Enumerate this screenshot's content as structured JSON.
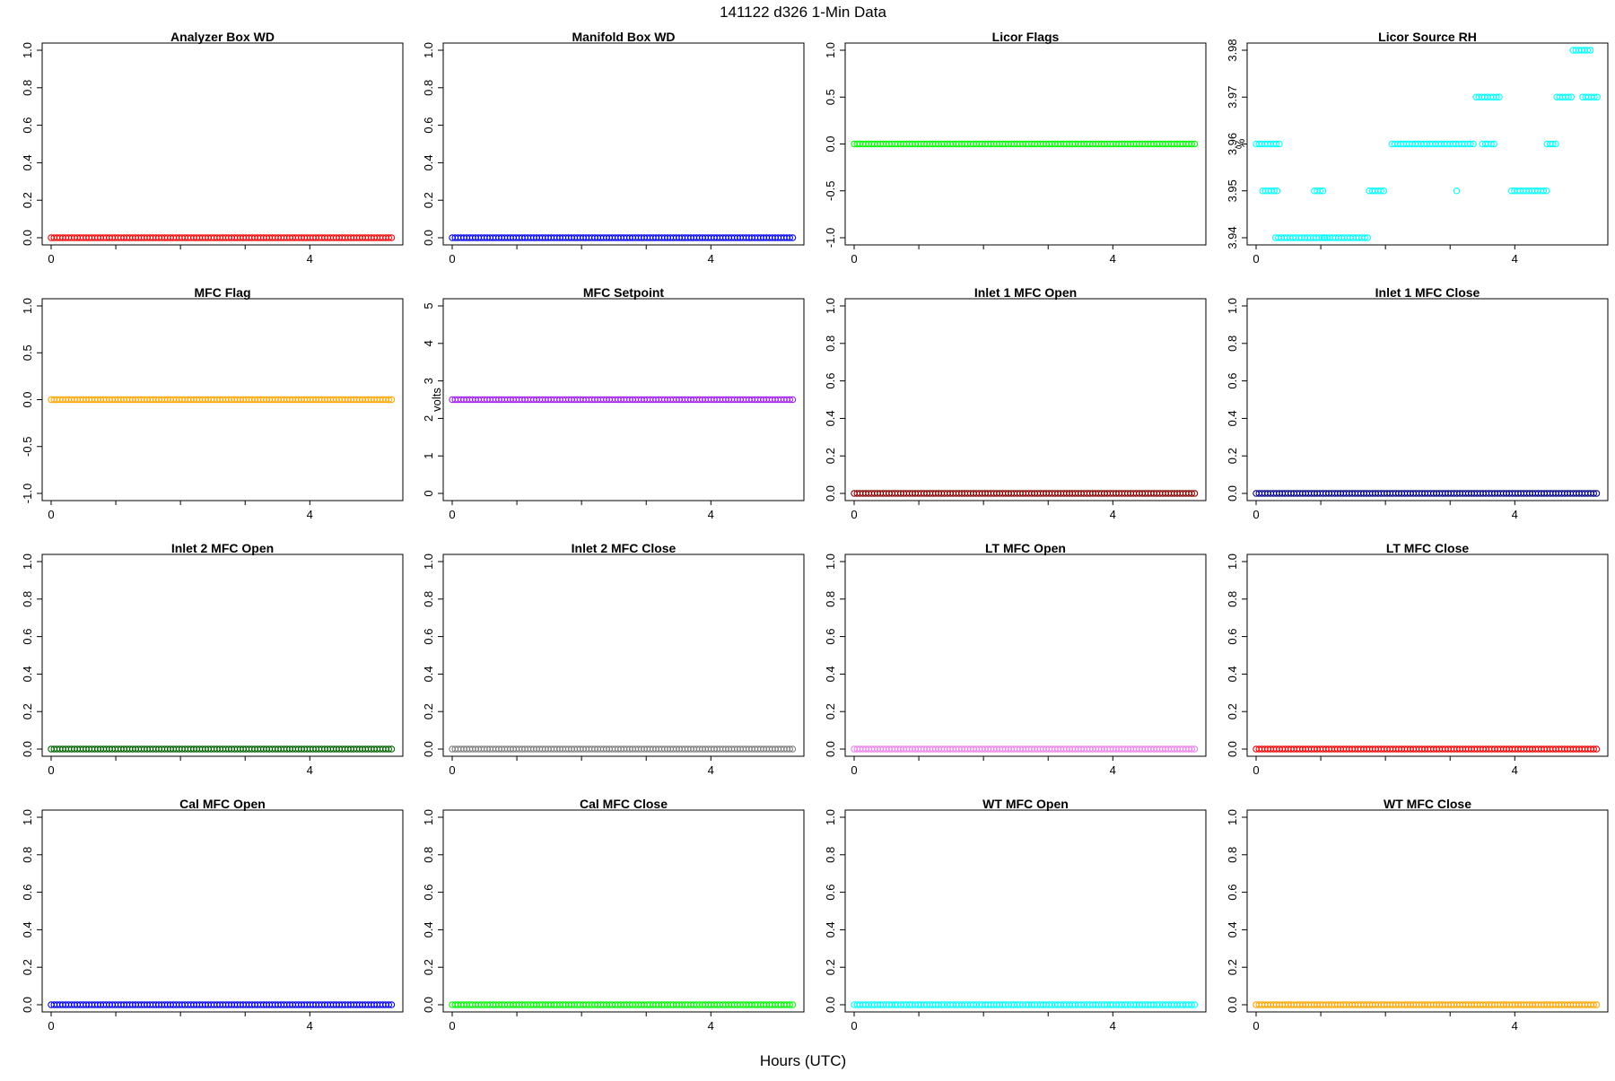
{
  "header": {
    "title": "141122   d326   1-Min Data",
    "xlabel": "Hours (UTC)"
  },
  "chart_data": [
    {
      "type": "scatter",
      "title": "Analyzer Box WD",
      "ylabel": "",
      "color": "#ff0000",
      "xlim": [
        0,
        5.3
      ],
      "ylim": [
        0,
        1
      ],
      "yticks": [
        "0.0",
        "0.2",
        "0.4",
        "0.6",
        "0.8",
        "1.0"
      ],
      "xticks": [
        "0",
        "4"
      ],
      "x_range": [
        0,
        5.3
      ],
      "y_constant": 0
    },
    {
      "type": "scatter",
      "title": "Manifold Box WD",
      "ylabel": "",
      "color": "#0000ff",
      "xlim": [
        0,
        5.3
      ],
      "ylim": [
        0,
        1
      ],
      "yticks": [
        "0.0",
        "0.2",
        "0.4",
        "0.6",
        "0.8",
        "1.0"
      ],
      "xticks": [
        "0",
        "4"
      ],
      "x_range": [
        0,
        5.3
      ],
      "y_constant": 0
    },
    {
      "type": "scatter",
      "title": "Licor Flags",
      "ylabel": "",
      "color": "#00ff00",
      "xlim": [
        0,
        5.3
      ],
      "ylim": [
        -1,
        1
      ],
      "yticks": [
        "-1.0",
        "-0.5",
        "0.0",
        "0.5",
        "1.0"
      ],
      "xticks": [
        "0",
        "4"
      ],
      "x_range": [
        0,
        5.3
      ],
      "y_constant": 0
    },
    {
      "type": "scatter",
      "title": "Licor Source RH",
      "ylabel": "%",
      "color": "#00ffff",
      "xlim": [
        0,
        5.3
      ],
      "ylim": [
        3.94,
        3.98
      ],
      "yticks": [
        "3.94",
        "3.95",
        "3.96",
        "3.97",
        "3.98"
      ],
      "xticks": [
        "0",
        "4"
      ],
      "segments": [
        {
          "x": [
            0.0,
            0.4
          ],
          "y": 3.96
        },
        {
          "x": [
            0.1,
            0.35
          ],
          "y": 3.95
        },
        {
          "x": [
            0.3,
            1.1
          ],
          "y": 3.94
        },
        {
          "x": [
            0.9,
            1.05
          ],
          "y": 3.95
        },
        {
          "x": [
            1.05,
            1.75
          ],
          "y": 3.94
        },
        {
          "x": [
            1.75,
            2.0
          ],
          "y": 3.95
        },
        {
          "x": [
            2.1,
            3.4
          ],
          "y": 3.96
        },
        {
          "x": [
            3.1,
            3.1
          ],
          "y": 3.95
        },
        {
          "x": [
            3.4,
            3.8
          ],
          "y": 3.97
        },
        {
          "x": [
            3.5,
            3.7
          ],
          "y": 3.96
        },
        {
          "x": [
            3.95,
            4.5
          ],
          "y": 3.95
        },
        {
          "x": [
            4.5,
            4.65
          ],
          "y": 3.96
        },
        {
          "x": [
            4.65,
            4.9
          ],
          "y": 3.97
        },
        {
          "x": [
            4.9,
            5.2
          ],
          "y": 3.98
        },
        {
          "x": [
            5.05,
            5.3
          ],
          "y": 3.97
        }
      ]
    },
    {
      "type": "scatter",
      "title": "MFC Flag",
      "ylabel": "",
      "color": "#ffa500",
      "xlim": [
        0,
        5.3
      ],
      "ylim": [
        -1,
        1
      ],
      "yticks": [
        "-1.0",
        "-0.5",
        "0.0",
        "0.5",
        "1.0"
      ],
      "xticks": [
        "0",
        "4"
      ],
      "x_range": [
        0,
        5.3
      ],
      "y_constant": 0
    },
    {
      "type": "scatter",
      "title": "MFC Setpoint",
      "ylabel": "volts",
      "color": "#a020f0",
      "xlim": [
        0,
        5.3
      ],
      "ylim": [
        0,
        5
      ],
      "yticks": [
        "0",
        "1",
        "2",
        "3",
        "4",
        "5"
      ],
      "xticks": [
        "0",
        "4"
      ],
      "x_range": [
        0,
        5.3
      ],
      "y_constant": 2.5
    },
    {
      "type": "scatter",
      "title": "Inlet 1 MFC Open",
      "ylabel": "",
      "color": "#8b0000",
      "xlim": [
        0,
        5.3
      ],
      "ylim": [
        0,
        1
      ],
      "yticks": [
        "0.0",
        "0.2",
        "0.4",
        "0.6",
        "0.8",
        "1.0"
      ],
      "xticks": [
        "0",
        "4"
      ],
      "x_range": [
        0,
        5.3
      ],
      "y_constant": 0
    },
    {
      "type": "scatter",
      "title": "Inlet 1 MFC Close",
      "ylabel": "",
      "color": "#00008b",
      "xlim": [
        0,
        5.3
      ],
      "ylim": [
        0,
        1
      ],
      "yticks": [
        "0.0",
        "0.2",
        "0.4",
        "0.6",
        "0.8",
        "1.0"
      ],
      "xticks": [
        "0",
        "4"
      ],
      "x_range": [
        0,
        5.3
      ],
      "y_constant": 0
    },
    {
      "type": "scatter",
      "title": "Inlet 2 MFC Open",
      "ylabel": "",
      "color": "#006400",
      "xlim": [
        0,
        5.3
      ],
      "ylim": [
        0,
        1
      ],
      "yticks": [
        "0.0",
        "0.2",
        "0.4",
        "0.6",
        "0.8",
        "1.0"
      ],
      "xticks": [
        "0",
        "4"
      ],
      "x_range": [
        0,
        5.3
      ],
      "y_constant": 0
    },
    {
      "type": "scatter",
      "title": "Inlet 2 MFC Close",
      "ylabel": "",
      "color": "#808080",
      "xlim": [
        0,
        5.3
      ],
      "ylim": [
        0,
        1
      ],
      "yticks": [
        "0.0",
        "0.2",
        "0.4",
        "0.6",
        "0.8",
        "1.0"
      ],
      "xticks": [
        "0",
        "4"
      ],
      "x_range": [
        0,
        5.3
      ],
      "y_constant": 0
    },
    {
      "type": "scatter",
      "title": "LT MFC Open",
      "ylabel": "",
      "color": "#ee82ee",
      "xlim": [
        0,
        5.3
      ],
      "ylim": [
        0,
        1
      ],
      "yticks": [
        "0.0",
        "0.2",
        "0.4",
        "0.6",
        "0.8",
        "1.0"
      ],
      "xticks": [
        "0",
        "4"
      ],
      "x_range": [
        0,
        5.3
      ],
      "y_constant": 0
    },
    {
      "type": "scatter",
      "title": "LT MFC Close",
      "ylabel": "",
      "color": "#ff0000",
      "xlim": [
        0,
        5.3
      ],
      "ylim": [
        0,
        1
      ],
      "yticks": [
        "0.0",
        "0.2",
        "0.4",
        "0.6",
        "0.8",
        "1.0"
      ],
      "xticks": [
        "0",
        "4"
      ],
      "x_range": [
        0,
        5.3
      ],
      "y_constant": 0
    },
    {
      "type": "scatter",
      "title": "Cal MFC Open",
      "ylabel": "",
      "color": "#0000ff",
      "xlim": [
        0,
        5.3
      ],
      "ylim": [
        0,
        1
      ],
      "yticks": [
        "0.0",
        "0.2",
        "0.4",
        "0.6",
        "0.8",
        "1.0"
      ],
      "xticks": [
        "0",
        "4"
      ],
      "x_range": [
        0,
        5.3
      ],
      "y_constant": 0
    },
    {
      "type": "scatter",
      "title": "Cal MFC Close",
      "ylabel": "",
      "color": "#00ff00",
      "xlim": [
        0,
        5.3
      ],
      "ylim": [
        0,
        1
      ],
      "yticks": [
        "0.0",
        "0.2",
        "0.4",
        "0.6",
        "0.8",
        "1.0"
      ],
      "xticks": [
        "0",
        "4"
      ],
      "x_range": [
        0,
        5.3
      ],
      "y_constant": 0
    },
    {
      "type": "scatter",
      "title": "WT MFC Open",
      "ylabel": "",
      "color": "#00ffff",
      "xlim": [
        0,
        5.3
      ],
      "ylim": [
        0,
        1
      ],
      "yticks": [
        "0.0",
        "0.2",
        "0.4",
        "0.6",
        "0.8",
        "1.0"
      ],
      "xticks": [
        "0",
        "4"
      ],
      "x_range": [
        0,
        5.3
      ],
      "y_constant": 0
    },
    {
      "type": "scatter",
      "title": "WT MFC Close",
      "ylabel": "",
      "color": "#ffa500",
      "xlim": [
        0,
        5.3
      ],
      "ylim": [
        0,
        1
      ],
      "yticks": [
        "0.0",
        "0.2",
        "0.4",
        "0.6",
        "0.8",
        "1.0"
      ],
      "xticks": [
        "0",
        "4"
      ],
      "x_range": [
        0,
        5.3
      ],
      "y_constant": 0
    }
  ]
}
